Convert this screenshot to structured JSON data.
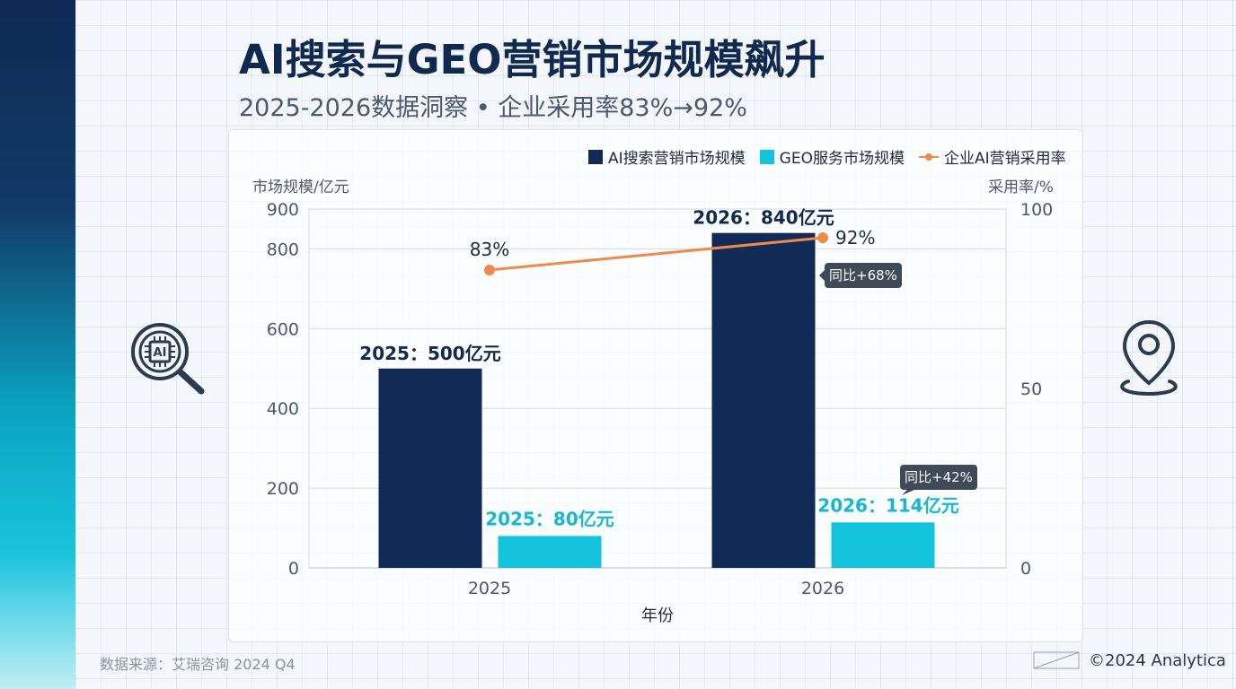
{
  "title": "AI搜索与GEO营销市场规模飙升",
  "subtitle": "2025-2026数据洞察 • 企业采用率83%→92%",
  "footer": {
    "source": "数据来源：艾瑞咨询 2024 Q4",
    "copyright": "©2024 Analytica"
  },
  "icons": {
    "left": "ai-chip-magnifier-icon",
    "right": "location-pin-icon"
  },
  "colors": {
    "ai_search": "#112b56",
    "geo": "#14c4dd",
    "adoption": "#f08a4b"
  },
  "chart_data": {
    "type": "bar",
    "xlabel": "年份",
    "ylabel": "市场规模/亿元",
    "y2label": "采用率/%",
    "categories": [
      "2025",
      "2026"
    ],
    "ylim": [
      0,
      900
    ],
    "yticks": [
      0,
      200,
      400,
      600,
      800,
      900
    ],
    "y2lim": [
      0,
      100
    ],
    "y2ticks": [
      0,
      50,
      100
    ],
    "grid": true,
    "legend_position": "top-right",
    "series": [
      {
        "name": "AI搜索营销市场规模",
        "type": "bar",
        "axis": "left",
        "values": [
          500,
          840
        ],
        "labels": [
          "2025：500亿元",
          "2026：840亿元"
        ]
      },
      {
        "name": "GEO服务市场规模",
        "type": "bar",
        "axis": "left",
        "values": [
          80,
          114
        ],
        "labels": [
          "2025：80亿元",
          "2026：114亿元"
        ]
      },
      {
        "name": "企业AI营销采用率",
        "type": "line",
        "axis": "right",
        "values": [
          83,
          92
        ],
        "labels": [
          "83%",
          "92%"
        ]
      }
    ],
    "annotations": [
      "同比+68%",
      "同比+42%"
    ]
  }
}
